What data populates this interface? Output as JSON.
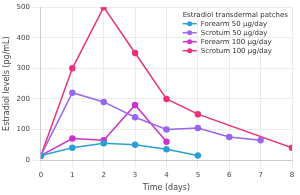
{
  "chart_data": {
    "type": "line",
    "x_label": "Time (days)",
    "y_label": "Estradiol levels (pg/mL)",
    "legend_title": "Estradiol transdermal patches",
    "legend": "upper right",
    "grid": true,
    "marker": "circle",
    "xlim": [
      0,
      8
    ],
    "xticks": [
      0,
      1,
      2,
      3,
      4,
      5,
      6,
      7,
      8
    ],
    "ylim": [
      0,
      500
    ],
    "yticks": [
      0,
      100,
      200,
      300,
      400,
      500
    ],
    "series": [
      {
        "name": "Forearm 50 μg/day",
        "color": "#2a9fd6",
        "x": [
          0,
          1,
          2,
          3,
          4,
          5
        ],
        "values": [
          15,
          40,
          55,
          50,
          35,
          15
        ]
      },
      {
        "name": "Scrotum 50 μg/day",
        "color": "#9966ee",
        "x": [
          0,
          1,
          2,
          3,
          4,
          5,
          6,
          7
        ],
        "values": [
          15,
          220,
          190,
          140,
          100,
          105,
          75,
          65
        ]
      },
      {
        "name": "Forearm 100 μg/day",
        "color": "#cc33cc",
        "x": [
          0,
          1,
          2,
          3,
          4
        ],
        "values": [
          15,
          70,
          65,
          180,
          60
        ]
      },
      {
        "name": "Scrotum 100 μg/day",
        "color": "#e8337a",
        "x": [
          0,
          1,
          2,
          3,
          4,
          5,
          8
        ],
        "values": [
          15,
          300,
          500,
          350,
          200,
          150,
          40
        ]
      }
    ]
  }
}
